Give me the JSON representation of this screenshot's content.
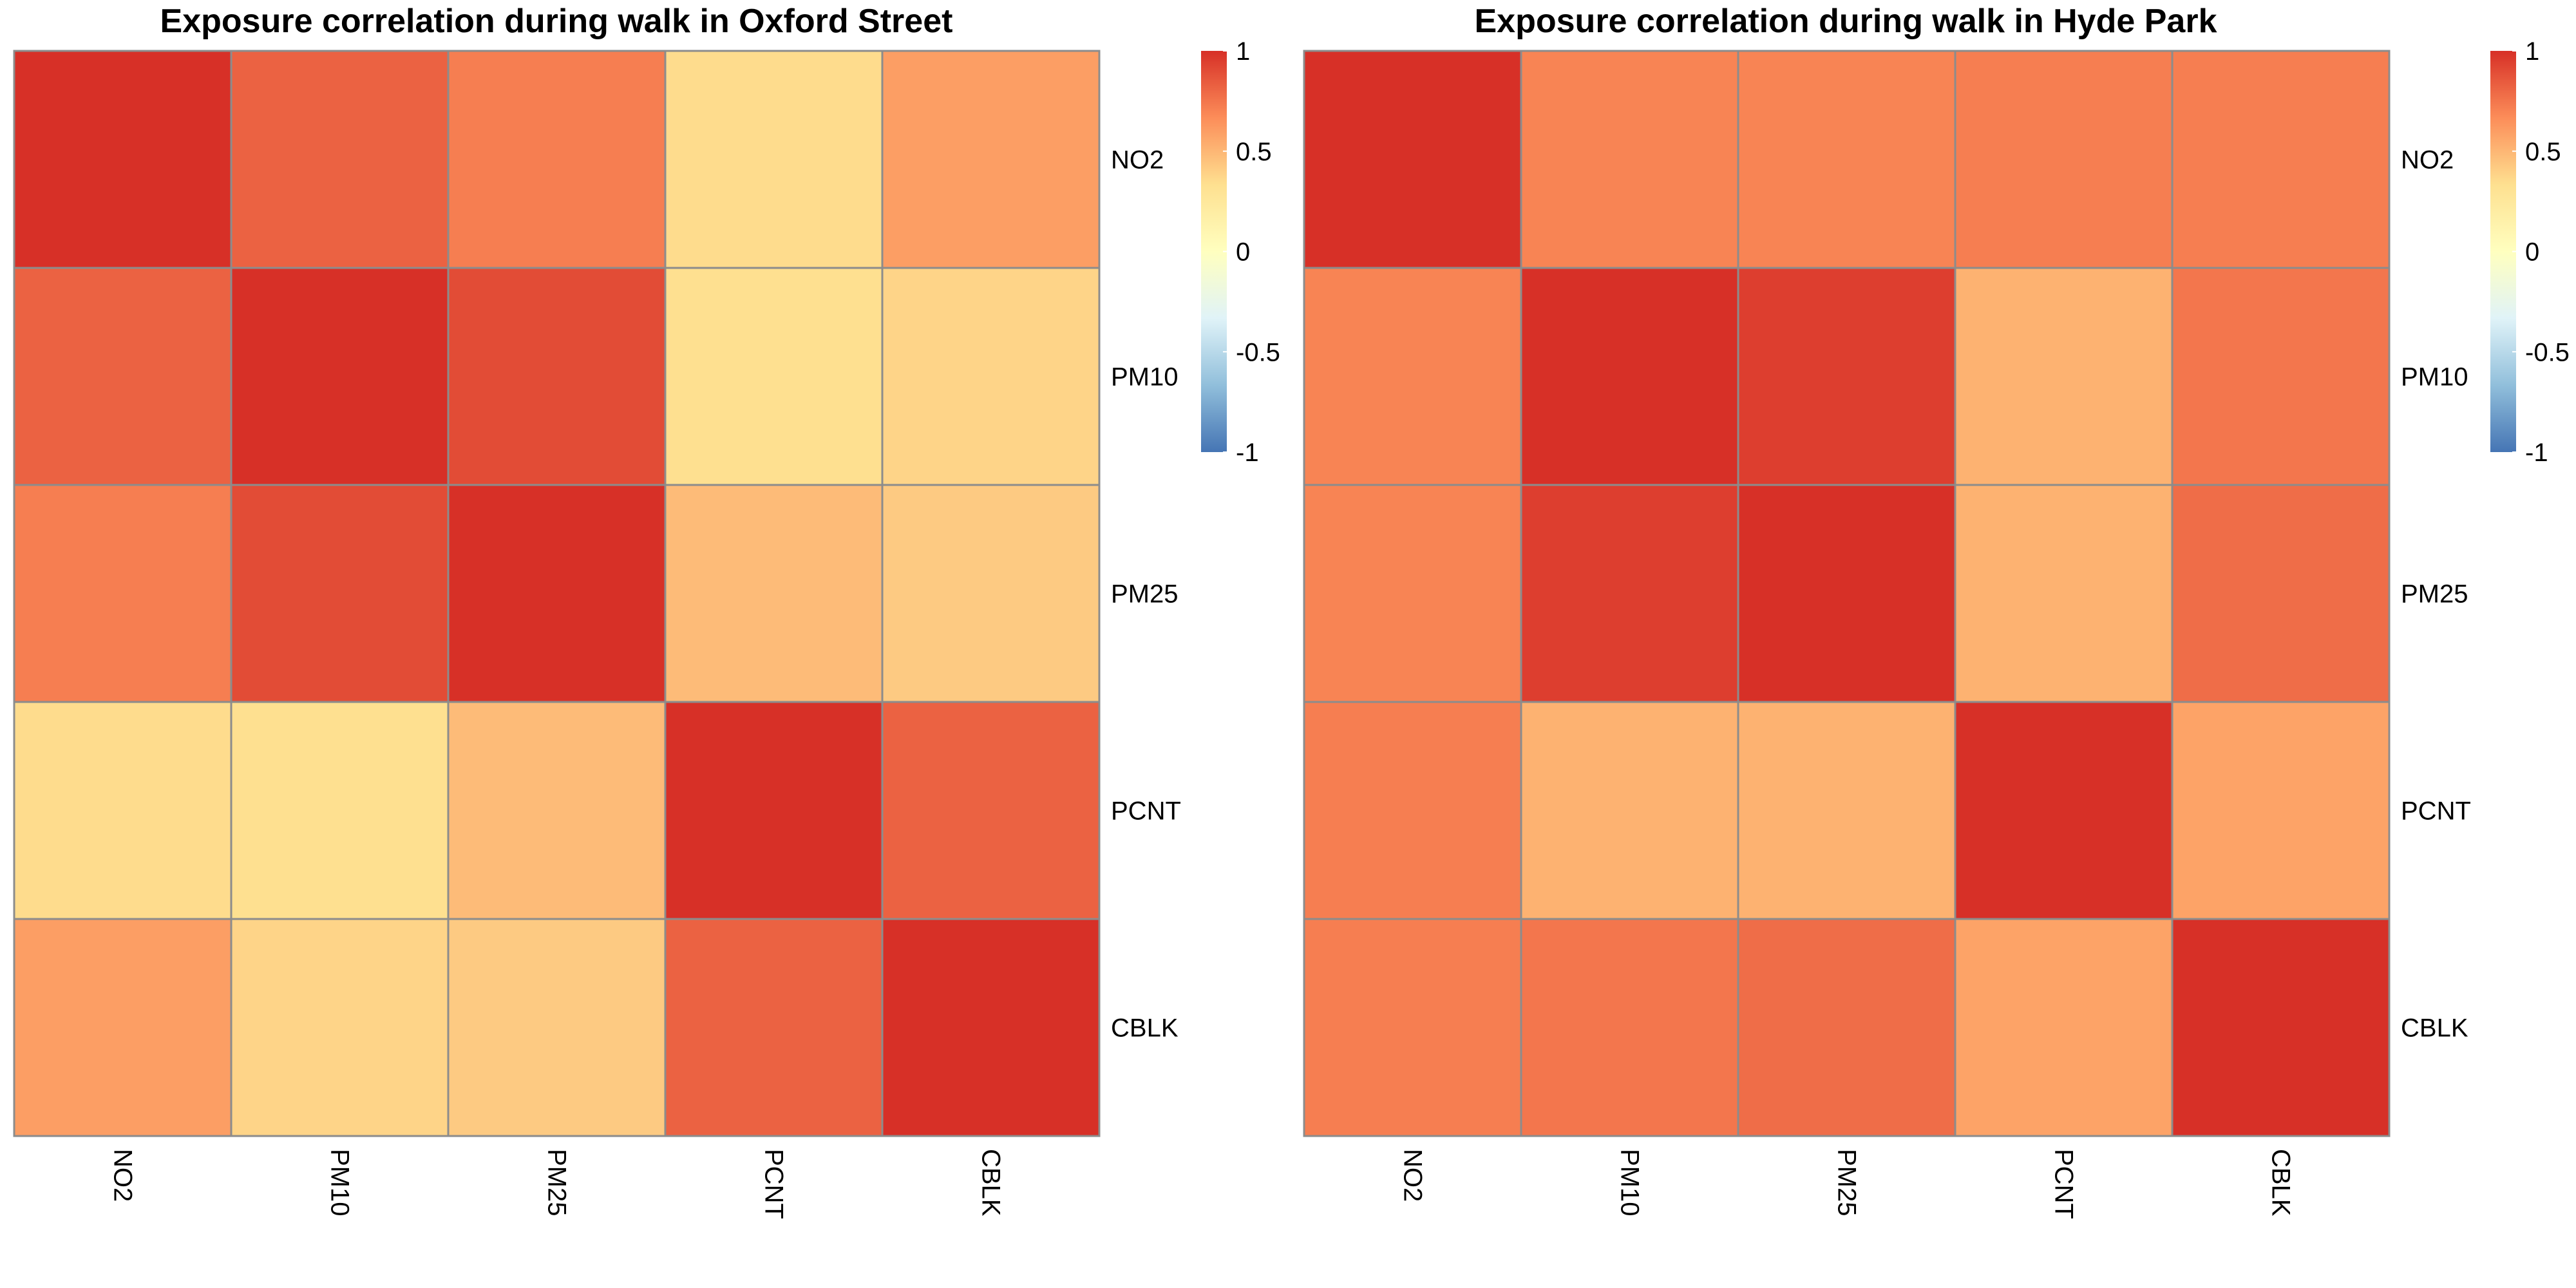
{
  "chart_data": [
    {
      "type": "heatmap",
      "title": "Exposure correlation during walk in Oxford Street",
      "rows": [
        "NO2",
        "PM10",
        "PM25",
        "PCNT",
        "CBLK"
      ],
      "columns": [
        "NO2",
        "PM10",
        "PM25",
        "PCNT",
        "CBLK"
      ],
      "values": [
        [
          1.0,
          0.82,
          0.72,
          0.35,
          0.6
        ],
        [
          0.82,
          1.0,
          0.9,
          0.33,
          0.38
        ],
        [
          0.72,
          0.9,
          1.0,
          0.48,
          0.42
        ],
        [
          0.35,
          0.33,
          0.48,
          1.0,
          0.82
        ],
        [
          0.6,
          0.38,
          0.42,
          0.82,
          1.0
        ]
      ],
      "legend": {
        "range": [
          -1,
          1
        ],
        "ticks": [
          "1",
          "0.5",
          "0",
          "-0.5",
          "-1"
        ],
        "colors": [
          "#4575B4",
          "#91BFDB",
          "#E0F3F8",
          "#FFFFBF",
          "#FEE090",
          "#FC8D59",
          "#D73027"
        ]
      },
      "grid": true
    },
    {
      "type": "heatmap",
      "title": "Exposure correlation during walk in Hyde Park",
      "rows": [
        "NO2",
        "PM10",
        "PM25",
        "PCNT",
        "CBLK"
      ],
      "columns": [
        "NO2",
        "PM10",
        "PM25",
        "PCNT",
        "CBLK"
      ],
      "values": [
        [
          1.0,
          0.7,
          0.7,
          0.72,
          0.72
        ],
        [
          0.7,
          1.0,
          0.95,
          0.52,
          0.75
        ],
        [
          0.7,
          0.95,
          1.0,
          0.52,
          0.78
        ],
        [
          0.72,
          0.52,
          0.52,
          1.0,
          0.58
        ],
        [
          0.72,
          0.75,
          0.78,
          0.58,
          1.0
        ]
      ],
      "legend": {
        "range": [
          -1,
          1
        ],
        "ticks": [
          "1",
          "0.5",
          "0",
          "-0.5",
          "-1"
        ],
        "colors": [
          "#4575B4",
          "#91BFDB",
          "#E0F3F8",
          "#FFFFBF",
          "#FEE090",
          "#FC8D59",
          "#D73027"
        ]
      },
      "grid": true
    }
  ],
  "style": {
    "cell_border_color": "#8C8C8C",
    "text_color": "#000000",
    "background": "#FFFFFF"
  }
}
